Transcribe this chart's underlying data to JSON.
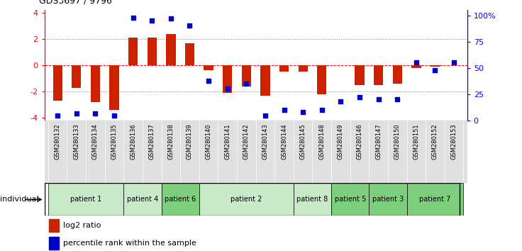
{
  "title": "GDS3697 / 9796",
  "samples": [
    "GSM280132",
    "GSM280133",
    "GSM280134",
    "GSM280135",
    "GSM280136",
    "GSM280137",
    "GSM280138",
    "GSM280139",
    "GSM280140",
    "GSM280141",
    "GSM280142",
    "GSM280143",
    "GSM280144",
    "GSM280145",
    "GSM280148",
    "GSM280149",
    "GSM280146",
    "GSM280147",
    "GSM280150",
    "GSM280151",
    "GSM280152",
    "GSM280153"
  ],
  "log2_ratio": [
    -2.7,
    -1.7,
    -2.8,
    -3.4,
    2.1,
    2.1,
    2.4,
    1.7,
    -0.4,
    -2.1,
    -1.6,
    -2.3,
    -0.5,
    -0.5,
    -2.2,
    0.0,
    -1.5,
    -1.5,
    -1.4,
    -0.2,
    -0.1,
    0.0
  ],
  "percentile": [
    5,
    7,
    7,
    5,
    98,
    95,
    97,
    90,
    38,
    30,
    35,
    5,
    10,
    8,
    10,
    18,
    22,
    20,
    20,
    55,
    48,
    55
  ],
  "patients": [
    {
      "label": "patient 1",
      "start": 0,
      "end": 4,
      "color": "#c8eac8"
    },
    {
      "label": "patient 4",
      "start": 4,
      "end": 6,
      "color": "#c8eac8"
    },
    {
      "label": "patient 6",
      "start": 6,
      "end": 8,
      "color": "#7dcf7d"
    },
    {
      "label": "patient 2",
      "start": 8,
      "end": 13,
      "color": "#c8eac8"
    },
    {
      "label": "patient 8",
      "start": 13,
      "end": 15,
      "color": "#c8eac8"
    },
    {
      "label": "patient 5",
      "start": 15,
      "end": 17,
      "color": "#7dcf7d"
    },
    {
      "label": "patient 3",
      "start": 17,
      "end": 19,
      "color": "#7dcf7d"
    },
    {
      "label": "patient 7",
      "start": 19,
      "end": 22,
      "color": "#7dcf7d"
    }
  ],
  "ylim_left": [
    -4.2,
    4.2
  ],
  "ylim_right": [
    0,
    105
  ],
  "yticks_left": [
    -4,
    -2,
    0,
    2,
    4
  ],
  "yticks_right": [
    0,
    25,
    50,
    75,
    100
  ],
  "ytick_labels_right": [
    "0",
    "25",
    "50",
    "75",
    "100%"
  ],
  "bar_color": "#cc2200",
  "dot_color": "#0000cc",
  "legend_items": [
    "log2 ratio",
    "percentile rank within the sample"
  ],
  "legend_colors": [
    "#cc2200",
    "#0000cc"
  ],
  "bg_color": "#e0e0e0"
}
